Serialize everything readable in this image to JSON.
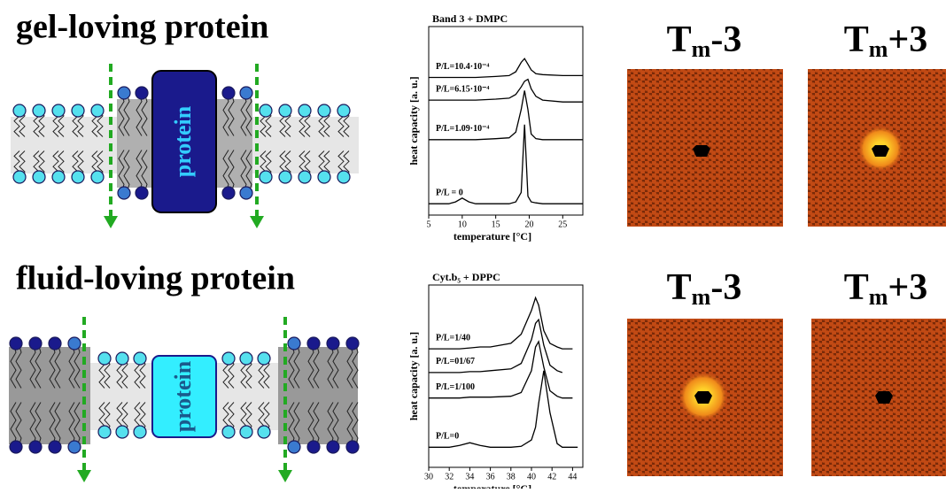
{
  "titles": [
    "gel-loving protein",
    "fluid-loving protein"
  ],
  "protein_labels": [
    "protein",
    "protein"
  ],
  "panels": [
    {
      "main": "T",
      "sub": "m",
      "suffix": "-3"
    },
    {
      "main": "T",
      "sub": "m",
      "suffix": "+3"
    },
    {
      "main": "T",
      "sub": "m",
      "suffix": "-3"
    },
    {
      "main": "T",
      "sub": "m",
      "suffix": "+3"
    }
  ],
  "chart_data": [
    {
      "type": "line",
      "title": "Band 3 + DMPC",
      "y_label": "heat capacity [a. u.]",
      "x_label": "temperature [°C]",
      "x": [
        5,
        8,
        9,
        10,
        11,
        12,
        15,
        17,
        18,
        18.8,
        19.3,
        19.8,
        20.3,
        21,
        22,
        25,
        28
      ],
      "xlim": [
        5,
        28
      ],
      "xticks": [
        5,
        10,
        15,
        20,
        25
      ],
      "ylim": [
        0,
        10
      ],
      "color": "#000000",
      "series": [
        {
          "name": "P/L=10.4·10⁻⁴",
          "values": [
            7.3,
            7.3,
            7.3,
            7.3,
            7.3,
            7.3,
            7.35,
            7.4,
            7.6,
            8.1,
            8.3,
            8.0,
            7.7,
            7.5,
            7.45,
            7.4,
            7.4
          ]
        },
        {
          "name": "P/L=6.15·10⁻⁴",
          "values": [
            6.1,
            6.1,
            6.1,
            6.1,
            6.1,
            6.1,
            6.15,
            6.2,
            6.4,
            6.8,
            7.1,
            7.2,
            6.7,
            6.3,
            6.1,
            6.0,
            6.0
          ]
        },
        {
          "name": "P/L=1.09·10⁻⁴",
          "values": [
            4.0,
            4.0,
            4.0,
            4.0,
            4.0,
            4.0,
            4.05,
            4.1,
            4.4,
            5.6,
            6.6,
            5.6,
            4.3,
            4.05,
            4.0,
            4.0,
            4.0
          ]
        },
        {
          "name": "P/L = 0",
          "values": [
            0.6,
            0.6,
            0.7,
            0.9,
            0.7,
            0.6,
            0.6,
            0.6,
            0.7,
            1.2,
            4.8,
            1.0,
            0.7,
            0.65,
            0.6,
            0.6,
            0.6
          ]
        }
      ]
    },
    {
      "type": "line",
      "title": "Cyt.b₅ + DPPC",
      "y_label": "heat capacity [a. u.]",
      "x_label": "temperature [°C]",
      "x": [
        30,
        32,
        33,
        34,
        35,
        36,
        38,
        39,
        40,
        40.4,
        40.7,
        41.2,
        41.8,
        42.5,
        43,
        44,
        44.5
      ],
      "xlim": [
        30,
        45
      ],
      "xticks": [
        30,
        32,
        34,
        36,
        38,
        40,
        42,
        44
      ],
      "ylim": [
        0,
        10
      ],
      "color": "#000000",
      "series": [
        {
          "name": "P/L=1/40",
          "values": [
            6.5,
            6.5,
            6.5,
            6.55,
            6.6,
            6.6,
            6.8,
            7.3,
            8.6,
            9.3,
            8.9,
            7.5,
            6.8,
            6.6,
            6.5,
            6.5,
            null
          ]
        },
        {
          "name": "P/L=01/67",
          "values": [
            5.2,
            5.2,
            5.2,
            5.25,
            5.25,
            5.3,
            5.4,
            5.7,
            7.0,
            7.9,
            8.1,
            6.7,
            5.6,
            5.3,
            5.2,
            null,
            null
          ]
        },
        {
          "name": "P/L=1/100",
          "values": [
            3.8,
            3.8,
            3.8,
            3.85,
            3.85,
            3.85,
            3.9,
            4.1,
            5.3,
            6.6,
            6.9,
            5.5,
            4.2,
            3.9,
            3.8,
            3.8,
            null
          ]
        },
        {
          "name": "P/L=0",
          "values": [
            1.1,
            1.1,
            1.2,
            1.35,
            1.2,
            1.1,
            1.1,
            1.15,
            1.5,
            2.2,
            3.5,
            5.3,
            3.0,
            1.3,
            1.1,
            1.1,
            1.1
          ]
        }
      ]
    }
  ]
}
